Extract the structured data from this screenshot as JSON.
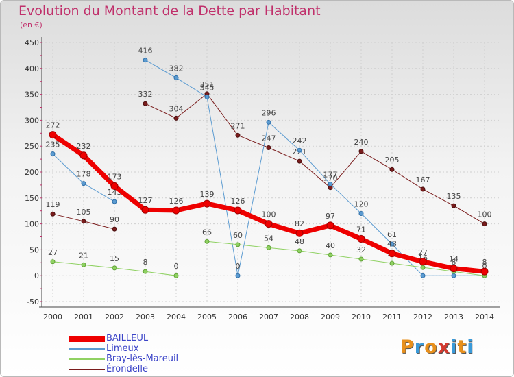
{
  "title": "Evolution du Montant de la Dette par Habitant",
  "subtitle": "(en €)",
  "logo": {
    "text": "Proxiti",
    "colors": [
      "#e8901c",
      "#3a9ad9",
      "#e8901c",
      "#d43a2f",
      "#3a9ad9",
      "#e8901c",
      "#3a9ad9"
    ]
  },
  "chart_data": {
    "type": "line",
    "categories": [
      "2000",
      "2001",
      "2002",
      "2003",
      "2004",
      "2005",
      "2006",
      "2007",
      "2008",
      "2009",
      "2010",
      "2011",
      "2012",
      "2013",
      "2014"
    ],
    "ylim": [
      -50,
      450
    ],
    "yticks": [
      -50,
      0,
      50,
      100,
      150,
      200,
      250,
      300,
      350,
      400,
      450
    ],
    "grid": "dashed",
    "legend_placement": "bottom-left",
    "series": [
      {
        "name": "Érondelle",
        "color": "#7a1c1c",
        "width": 1,
        "values": [
          119,
          105,
          90,
          332,
          304,
          351,
          271,
          247,
          221,
          170,
          240,
          205,
          167,
          135,
          100
        ],
        "labels": [
          "119",
          "105",
          "90",
          "332",
          "304",
          "351",
          "271",
          "247",
          "221",
          "170",
          "240",
          "205",
          "167",
          "135",
          "100"
        ]
      },
      {
        "name": "Limeux",
        "color": "#5b9bd1",
        "width": 1,
        "values": [
          235,
          178,
          143,
          416,
          382,
          345,
          0,
          296,
          242,
          177,
          120,
          61,
          0,
          0,
          0
        ],
        "labels": [
          "235",
          "178",
          "143",
          "416",
          "382",
          "345",
          "0",
          "296",
          "242",
          "177",
          "120",
          "61",
          "",
          "",
          ""
        ]
      },
      {
        "name": "Bray-lès-Mareuil",
        "color": "#8fd162",
        "width": 1,
        "values": [
          27,
          21,
          15,
          8,
          0,
          66,
          60,
          54,
          48,
          40,
          32,
          24,
          16,
          8,
          0
        ],
        "labels": [
          "27",
          "21",
          "15",
          "8",
          "0",
          "66",
          "60",
          "54",
          "48",
          "40",
          "32",
          "24",
          "16",
          "8",
          "0"
        ]
      },
      {
        "name": "BAILLEUL",
        "color": "#ee0000",
        "width": 7,
        "values": [
          272,
          232,
          173,
          127,
          126,
          139,
          126,
          100,
          82,
          97,
          71,
          43,
          27,
          14,
          8
        ],
        "labels": [
          "272",
          "232",
          "173",
          "127",
          "126",
          "139",
          "126",
          "100",
          "82",
          "97",
          "71",
          "43",
          "27",
          "14",
          "8"
        ]
      }
    ],
    "legend_order": [
      "BAILLEUL",
      "Limeux",
      "Bray-lès-Mareuil",
      "Érondelle"
    ]
  }
}
